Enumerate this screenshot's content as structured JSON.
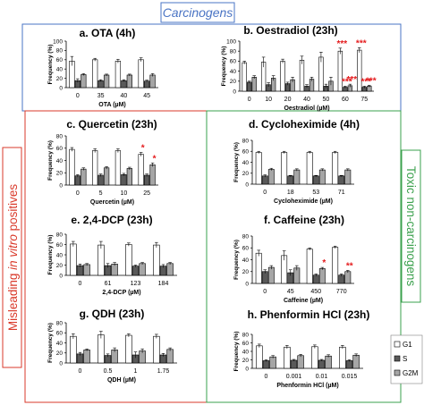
{
  "header": {
    "carcinogens": "Carcinogens",
    "misleading": "Misleading in vitro positives",
    "misleading_prefix": "Misleading ",
    "misleading_italic": "in vitro",
    "misleading_suffix": " positives",
    "toxic": "Toxic non-carcinogens"
  },
  "colors": {
    "carcinogens_box": "#4a74c4",
    "misleading_box": "#d93a2b",
    "toxic_box": "#3aa04c",
    "g1": "#ffffff",
    "s": "#595959",
    "g2m": "#a6a6a6",
    "star": "#e41a1c"
  },
  "legend": [
    {
      "key": "g1",
      "label": "G1"
    },
    {
      "key": "s",
      "label": "S"
    },
    {
      "key": "g2m",
      "label": "G2M"
    }
  ],
  "chart_data": [
    {
      "type": "bar",
      "title": "a. OTA (4h)",
      "xlabel": "OTA (µM)",
      "ylabel": "Frequency (%)",
      "categories": [
        "0",
        "35",
        "40",
        "45"
      ],
      "ylim": [
        0,
        100
      ],
      "yticks": [
        "0",
        "20",
        "40",
        "60",
        "80",
        "100"
      ],
      "series": [
        {
          "name": "G1",
          "values": [
            57,
            60,
            57,
            60
          ],
          "err": [
            10,
            3,
            4,
            4
          ]
        },
        {
          "name": "S",
          "values": [
            15,
            15,
            15,
            14
          ],
          "err": [
            4,
            2,
            2,
            2
          ]
        },
        {
          "name": "G2M",
          "values": [
            28,
            27,
            27,
            27
          ],
          "err": [
            2,
            2,
            2,
            3
          ]
        }
      ],
      "stars": []
    },
    {
      "type": "bar",
      "title": "b. Oestradiol (23h)",
      "xlabel": "Oestradiol (µM)",
      "ylabel": "Frequency (%)",
      "categories": [
        "0",
        "10",
        "20",
        "40",
        "50",
        "60",
        "75"
      ],
      "ylim": [
        0,
        100
      ],
      "yticks": [
        "0",
        "20",
        "40",
        "60",
        "80",
        "100"
      ],
      "series": [
        {
          "name": "G1",
          "values": [
            57,
            58,
            60,
            62,
            68,
            80,
            82
          ],
          "err": [
            3,
            10,
            4,
            8,
            10,
            6,
            5
          ]
        },
        {
          "name": "S",
          "values": [
            18,
            13,
            15,
            10,
            10,
            8,
            8
          ],
          "err": [
            2,
            4,
            3,
            3,
            4,
            2,
            2
          ]
        },
        {
          "name": "G2M",
          "values": [
            28,
            26,
            23,
            24,
            20,
            11,
            10
          ],
          "err": [
            3,
            5,
            5,
            4,
            8,
            3,
            2
          ]
        }
      ],
      "stars": [
        {
          "cat": 5,
          "bar": 0,
          "text": "***"
        },
        {
          "cat": 5,
          "bar": 1,
          "text": "***"
        },
        {
          "cat": 5,
          "bar": 2,
          "text": "***"
        },
        {
          "cat": 6,
          "bar": 0,
          "text": "***"
        },
        {
          "cat": 6,
          "bar": 1,
          "text": "***"
        },
        {
          "cat": 6,
          "bar": 2,
          "text": "***"
        }
      ]
    },
    {
      "type": "bar",
      "title": "c. Quercetin (23h)",
      "xlabel": "Quercetin (µM)",
      "ylabel": "Frequency (%)",
      "categories": [
        "0",
        "5",
        "10",
        "25"
      ],
      "ylim": [
        0,
        80
      ],
      "yticks": [
        "0",
        "20",
        "40",
        "60",
        "80"
      ],
      "series": [
        {
          "name": "G1",
          "values": [
            58,
            56,
            56,
            50
          ],
          "err": [
            3,
            3,
            3,
            3
          ]
        },
        {
          "name": "S",
          "values": [
            15,
            16,
            17,
            16
          ],
          "err": [
            2,
            2,
            2,
            2
          ]
        },
        {
          "name": "G2M",
          "values": [
            26,
            28,
            27,
            33
          ],
          "err": [
            2,
            2,
            2,
            3
          ]
        }
      ],
      "stars": [
        {
          "cat": 3,
          "bar": 0,
          "text": "*"
        },
        {
          "cat": 3,
          "bar": 2,
          "text": "*"
        }
      ]
    },
    {
      "type": "bar",
      "title": "d. Cycloheximide (4h)",
      "xlabel": "Cycloheximide (µM)",
      "ylabel": "Frequency (%)",
      "categories": [
        "0",
        "18",
        "53",
        "71"
      ],
      "ylim": [
        0,
        80
      ],
      "yticks": [
        "0",
        "20",
        "40",
        "60",
        "80"
      ],
      "series": [
        {
          "name": "G1",
          "values": [
            58,
            58,
            58,
            58
          ],
          "err": [
            2,
            2,
            2,
            2
          ]
        },
        {
          "name": "S",
          "values": [
            15,
            15,
            15,
            15
          ],
          "err": [
            2,
            1,
            1,
            1
          ]
        },
        {
          "name": "G2M",
          "values": [
            27,
            26,
            26,
            26
          ],
          "err": [
            2,
            2,
            2,
            2
          ]
        }
      ],
      "stars": []
    },
    {
      "type": "bar",
      "title": "e. 2,4-DCP (23h)",
      "xlabel": "2,4-DCP (µM)",
      "ylabel": "Frequency (%)",
      "categories": [
        "0",
        "61",
        "123",
        "184"
      ],
      "ylim": [
        0,
        80
      ],
      "yticks": [
        "0",
        "20",
        "40",
        "60",
        "80"
      ],
      "series": [
        {
          "name": "G1",
          "values": [
            61,
            59,
            60,
            59
          ],
          "err": [
            5,
            7,
            3,
            5
          ]
        },
        {
          "name": "S",
          "values": [
            19,
            19,
            18,
            18
          ],
          "err": [
            3,
            4,
            2,
            3
          ]
        },
        {
          "name": "G2M",
          "values": [
            21,
            22,
            23,
            23
          ],
          "err": [
            2,
            3,
            2,
            2
          ]
        }
      ],
      "stars": []
    },
    {
      "type": "bar",
      "title": "f. Caffeine (23h)",
      "xlabel": "Caffeine (µM)",
      "ylabel": "Frequency (%)",
      "categories": [
        "0",
        "45",
        "450",
        "770"
      ],
      "ylim": [
        0,
        80
      ],
      "yticks": [
        "0",
        "20",
        "40",
        "60",
        "80"
      ],
      "series": [
        {
          "name": "G1",
          "values": [
            51,
            47,
            58,
            61
          ],
          "err": [
            5,
            8,
            2,
            2
          ]
        },
        {
          "name": "S",
          "values": [
            20,
            18,
            14,
            14
          ],
          "err": [
            3,
            5,
            2,
            2
          ]
        },
        {
          "name": "G2M",
          "values": [
            27,
            26,
            25,
            20
          ],
          "err": [
            3,
            4,
            2,
            2
          ]
        }
      ],
      "stars": [
        {
          "cat": 2,
          "bar": 2,
          "text": "*"
        },
        {
          "cat": 3,
          "bar": 2,
          "text": "**"
        }
      ]
    },
    {
      "type": "bar",
      "title": "g. QDH (23h)",
      "xlabel": "QDH (µM)",
      "ylabel": "Frequency (%)",
      "categories": [
        "0",
        "0.5",
        "1",
        "1.75"
      ],
      "ylim": [
        0,
        80
      ],
      "yticks": [
        "0",
        "20",
        "40",
        "60",
        "80"
      ],
      "series": [
        {
          "name": "G1",
          "values": [
            53,
            56,
            55,
            53
          ],
          "err": [
            5,
            7,
            3,
            4
          ]
        },
        {
          "name": "S",
          "values": [
            18,
            15,
            16,
            16
          ],
          "err": [
            3,
            3,
            6,
            3
          ]
        },
        {
          "name": "G2M",
          "values": [
            26,
            26,
            24,
            27
          ],
          "err": [
            2,
            4,
            4,
            3
          ]
        }
      ],
      "stars": []
    },
    {
      "type": "bar",
      "title": "h. Phenformin HCl (23h)",
      "xlabel": "Phenformin HCl (µM)",
      "ylabel": "Frequency (%)",
      "categories": [
        "0",
        "0.001",
        "0.01",
        "0.015"
      ],
      "ylim": [
        0,
        80
      ],
      "yticks": [
        "0",
        "20",
        "40",
        "60",
        "80"
      ],
      "series": [
        {
          "name": "G1",
          "values": [
            53,
            50,
            51,
            50
          ],
          "err": [
            4,
            4,
            4,
            4
          ]
        },
        {
          "name": "S",
          "values": [
            18,
            19,
            19,
            18
          ],
          "err": [
            2,
            2,
            2,
            2
          ]
        },
        {
          "name": "G2M",
          "values": [
            27,
            30,
            29,
            31
          ],
          "err": [
            3,
            3,
            3,
            3
          ]
        }
      ],
      "stars": []
    }
  ]
}
